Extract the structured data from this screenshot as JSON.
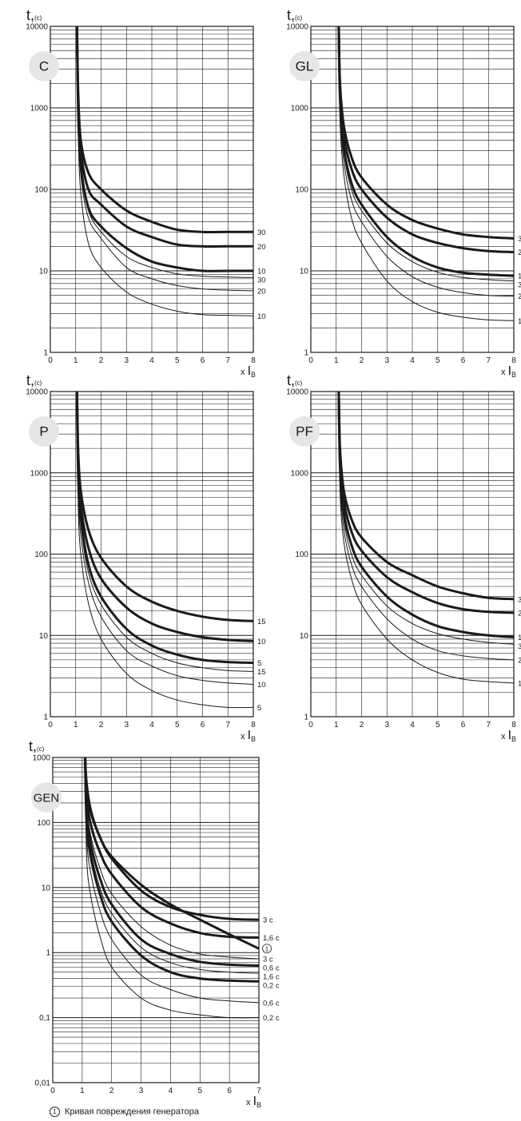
{
  "footnote": {
    "marker": "1",
    "text": "Кривая повреждения генератора"
  },
  "chart_data": [
    {
      "type": "line",
      "badge": "C",
      "ylabel": "t,(c)",
      "xlabel": "x IB",
      "ylog": true,
      "ylim": [
        1,
        10000
      ],
      "xlim": [
        0,
        8
      ],
      "yticks": [
        "1",
        "10",
        "100",
        "1000",
        "10000"
      ],
      "xticks": [
        "0",
        "1",
        "2",
        "3",
        "4",
        "5",
        "6",
        "7",
        "8"
      ],
      "series": [
        {
          "name": "30",
          "bold": true,
          "x": [
            1.05,
            1.1,
            1.2,
            1.5,
            2,
            3,
            4,
            5,
            6,
            7,
            8
          ],
          "y": [
            10000,
            1500,
            400,
            160,
            100,
            55,
            40,
            32,
            30,
            30,
            30
          ]
        },
        {
          "name": "20",
          "bold": true,
          "x": [
            1.05,
            1.1,
            1.2,
            1.5,
            2,
            3,
            4,
            5,
            6,
            7,
            8
          ],
          "y": [
            10000,
            1200,
            300,
            100,
            65,
            35,
            26,
            21,
            20,
            20,
            20
          ]
        },
        {
          "name": "10",
          "bold": true,
          "x": [
            1.05,
            1.1,
            1.2,
            1.5,
            2,
            3,
            4,
            5,
            6,
            7,
            8
          ],
          "y": [
            10000,
            900,
            200,
            60,
            35,
            19,
            13,
            11,
            10,
            10,
            10
          ]
        },
        {
          "name": "30",
          "bold": false,
          "x": [
            1.05,
            1.1,
            1.2,
            1.5,
            2,
            3,
            4,
            5,
            6,
            7,
            8
          ],
          "y": [
            10000,
            800,
            180,
            55,
            30,
            15,
            11,
            9.2,
            8.6,
            8.4,
            8.3
          ]
        },
        {
          "name": "20",
          "bold": false,
          "x": [
            1.05,
            1.1,
            1.2,
            1.5,
            2,
            3,
            4,
            5,
            6,
            7,
            8
          ],
          "y": [
            10000,
            700,
            150,
            45,
            25,
            11,
            8,
            6.6,
            6,
            5.8,
            5.7
          ]
        },
        {
          "name": "10",
          "bold": false,
          "x": [
            1.05,
            1.1,
            1.2,
            1.5,
            2,
            3,
            4,
            5,
            6,
            7,
            8
          ],
          "y": [
            10000,
            500,
            90,
            22,
            11,
            5.5,
            3.9,
            3.2,
            2.9,
            2.85,
            2.8
          ]
        }
      ]
    },
    {
      "type": "line",
      "badge": "GL",
      "ylabel": "t,(c)",
      "xlabel": "x IB",
      "ylog": true,
      "ylim": [
        1,
        10000
      ],
      "xlim": [
        0,
        8
      ],
      "yticks": [
        "1",
        "10",
        "100",
        "1000",
        "10000"
      ],
      "xticks": [
        "0",
        "1",
        "2",
        "3",
        "4",
        "5",
        "6",
        "7",
        "8"
      ],
      "series": [
        {
          "name": "3",
          "bold": true,
          "x": [
            1.1,
            1.15,
            1.3,
            1.6,
            2,
            3,
            4,
            5,
            6,
            7,
            8
          ],
          "y": [
            10000,
            2000,
            600,
            250,
            140,
            65,
            42,
            33,
            28,
            26,
            25
          ]
        },
        {
          "name": "2",
          "bold": true,
          "x": [
            1.1,
            1.15,
            1.3,
            1.6,
            2,
            3,
            4,
            5,
            6,
            7,
            8
          ],
          "y": [
            10000,
            1700,
            450,
            180,
            100,
            45,
            28,
            22,
            19,
            17.5,
            17
          ]
        },
        {
          "name": "1",
          "bold": true,
          "x": [
            1.1,
            1.15,
            1.3,
            1.6,
            2,
            3,
            4,
            5,
            6,
            7,
            8
          ],
          "y": [
            10000,
            1300,
            320,
            120,
            65,
            26,
            15,
            11,
            9.5,
            9,
            8.7
          ]
        },
        {
          "name": "3",
          "bold": false,
          "x": [
            1.1,
            1.15,
            1.3,
            1.6,
            2,
            3,
            4,
            5,
            6,
            7,
            8
          ],
          "y": [
            10000,
            1100,
            280,
            100,
            55,
            22,
            13,
            9.6,
            8.3,
            7.8,
            7.5
          ]
        },
        {
          "name": "2",
          "bold": false,
          "x": [
            1.1,
            1.15,
            1.3,
            1.6,
            2,
            3,
            4,
            5,
            6,
            7,
            8
          ],
          "y": [
            10000,
            900,
            220,
            75,
            40,
            15,
            8.5,
            6.3,
            5.4,
            5,
            4.9
          ]
        },
        {
          "name": "1",
          "bold": false,
          "x": [
            1.1,
            1.15,
            1.3,
            1.6,
            2,
            3,
            4,
            5,
            6,
            7,
            8
          ],
          "y": [
            10000,
            700,
            150,
            45,
            22,
            7.5,
            4.2,
            3.1,
            2.7,
            2.5,
            2.45
          ]
        }
      ]
    },
    {
      "type": "line",
      "badge": "P",
      "ylabel": "t,(c)",
      "xlabel": "x IB",
      "ylog": true,
      "ylim": [
        1,
        10000
      ],
      "xlim": [
        0,
        8
      ],
      "yticks": [
        "1",
        "10",
        "100",
        "1000",
        "10000"
      ],
      "xticks": [
        "0",
        "1",
        "2",
        "3",
        "4",
        "5",
        "6",
        "7",
        "8"
      ],
      "series": [
        {
          "name": "15",
          "bold": true,
          "x": [
            1.05,
            1.1,
            1.2,
            1.5,
            2,
            3,
            4,
            5,
            6,
            7,
            8
          ],
          "y": [
            10000,
            1800,
            600,
            200,
            90,
            40,
            26,
            20,
            17,
            15.5,
            15
          ]
        },
        {
          "name": "10",
          "bold": true,
          "x": [
            1.05,
            1.1,
            1.2,
            1.5,
            2,
            3,
            4,
            5,
            6,
            7,
            8
          ],
          "y": [
            10000,
            1200,
            400,
            120,
            50,
            22,
            14,
            11,
            9.5,
            8.8,
            8.5
          ]
        },
        {
          "name": "5",
          "bold": true,
          "x": [
            1.05,
            1.1,
            1.2,
            1.5,
            2,
            3,
            4,
            5,
            6,
            7,
            8
          ],
          "y": [
            10000,
            900,
            280,
            75,
            30,
            12,
            7.5,
            5.8,
            5,
            4.7,
            4.6
          ]
        },
        {
          "name": "15",
          "bold": false,
          "x": [
            1.05,
            1.1,
            1.2,
            1.5,
            2,
            3,
            4,
            5,
            6,
            7,
            8
          ],
          "y": [
            10000,
            800,
            230,
            60,
            24,
            9.5,
            6,
            4.6,
            4,
            3.7,
            3.6
          ]
        },
        {
          "name": "10",
          "bold": false,
          "x": [
            1.05,
            1.1,
            1.2,
            1.5,
            2,
            3,
            4,
            5,
            6,
            7,
            8
          ],
          "y": [
            10000,
            600,
            170,
            45,
            17,
            6.5,
            4.2,
            3.2,
            2.8,
            2.6,
            2.5
          ]
        },
        {
          "name": "5",
          "bold": false,
          "x": [
            1.05,
            1.1,
            1.2,
            1.5,
            2,
            3,
            4,
            5,
            6,
            7,
            8
          ],
          "y": [
            10000,
            400,
            100,
            25,
            9,
            3.4,
            2.1,
            1.6,
            1.4,
            1.3,
            1.3
          ]
        }
      ]
    },
    {
      "type": "line",
      "badge": "PF",
      "ylabel": "t,(c)",
      "xlabel": "x IB",
      "ylog": true,
      "ylim": [
        1,
        10000
      ],
      "xlim": [
        0,
        8
      ],
      "yticks": [
        "1",
        "10",
        "100",
        "1000",
        "10000"
      ],
      "xticks": [
        "0",
        "1",
        "2",
        "3",
        "4",
        "5",
        "6",
        "7",
        "8"
      ],
      "series": [
        {
          "name": "3",
          "bold": true,
          "x": [
            1.1,
            1.15,
            1.3,
            1.6,
            2,
            3,
            4,
            5,
            6,
            7,
            8
          ],
          "y": [
            10000,
            2000,
            600,
            270,
            160,
            80,
            55,
            40,
            33,
            29,
            28
          ]
        },
        {
          "name": "2",
          "bold": true,
          "x": [
            1.1,
            1.15,
            1.3,
            1.6,
            2,
            3,
            4,
            5,
            6,
            7,
            8
          ],
          "y": [
            10000,
            1600,
            450,
            190,
            110,
            52,
            34,
            25,
            21,
            19.5,
            19
          ]
        },
        {
          "name": "1",
          "bold": true,
          "x": [
            1.1,
            1.15,
            1.3,
            1.6,
            2,
            3,
            4,
            5,
            6,
            7,
            8
          ],
          "y": [
            10000,
            1200,
            320,
            130,
            70,
            30,
            18,
            13,
            11,
            10,
            9.5
          ]
        },
        {
          "name": "3",
          "bold": false,
          "x": [
            1.1,
            1.15,
            1.3,
            1.6,
            2,
            3,
            4,
            5,
            6,
            7,
            8
          ],
          "y": [
            10000,
            1000,
            260,
            100,
            55,
            23,
            14,
            10.5,
            9,
            8.2,
            7.8
          ]
        },
        {
          "name": "2",
          "bold": false,
          "x": [
            1.1,
            1.15,
            1.3,
            1.6,
            2,
            3,
            4,
            5,
            6,
            7,
            8
          ],
          "y": [
            10000,
            800,
            200,
            75,
            40,
            16,
            9,
            6.5,
            5.6,
            5.2,
            5
          ]
        },
        {
          "name": "1",
          "bold": false,
          "x": [
            1.1,
            1.15,
            1.3,
            1.6,
            2,
            3,
            4,
            5,
            6,
            7,
            8
          ],
          "y": [
            10000,
            600,
            140,
            50,
            24,
            9,
            5,
            3.5,
            2.9,
            2.7,
            2.6
          ]
        }
      ]
    },
    {
      "type": "line",
      "badge": "GEN",
      "ylabel": "t,(c)",
      "xlabel": "x IB",
      "ylog": true,
      "ylim": [
        0.01,
        1000
      ],
      "xlim": [
        0,
        7
      ],
      "yticks": [
        "0,01",
        "0,1",
        "1",
        "10",
        "100",
        "1000"
      ],
      "xticks": [
        "0",
        "1",
        "2",
        "3",
        "4",
        "5",
        "6",
        "7"
      ],
      "series": [
        {
          "name": "3 c",
          "bold": true,
          "x": [
            1.1,
            1.15,
            1.3,
            1.6,
            2,
            3,
            4,
            5,
            6,
            7
          ],
          "y": [
            1000,
            350,
            140,
            60,
            28,
            9,
            5,
            3.8,
            3.3,
            3.2
          ]
        },
        {
          "name": "1,6 c",
          "bold": true,
          "x": [
            1.1,
            1.15,
            1.3,
            1.6,
            2,
            3,
            4,
            5,
            6,
            7
          ],
          "y": [
            1000,
            250,
            90,
            35,
            16,
            5,
            2.8,
            2,
            1.75,
            1.7
          ]
        },
        {
          "name": "1",
          "bold": true,
          "x": [
            1.1,
            1.15,
            1.3,
            1.6,
            2,
            3,
            4,
            5,
            6,
            7
          ],
          "y": [
            1000,
            400,
            150,
            60,
            30,
            11,
            5.5,
            3.2,
            1.9,
            1.15
          ]
        },
        {
          "name": "3 c",
          "bold": false,
          "x": [
            1.1,
            1.15,
            1.3,
            1.6,
            2,
            3,
            4,
            5,
            6,
            7
          ],
          "y": [
            1000,
            180,
            60,
            20,
            8,
            2.5,
            1.3,
            0.95,
            0.85,
            0.8
          ]
        },
        {
          "name": "0,6 c",
          "bold": true,
          "x": [
            1.1,
            1.15,
            1.3,
            1.6,
            2,
            3,
            4,
            5,
            6,
            7
          ],
          "y": [
            1000,
            150,
            45,
            14,
            5.5,
            1.6,
            0.95,
            0.72,
            0.65,
            0.63
          ]
        },
        {
          "name": "1,6 c",
          "bold": false,
          "x": [
            1.1,
            1.15,
            1.3,
            1.6,
            2,
            3,
            4,
            5,
            6,
            7
          ],
          "y": [
            1000,
            120,
            35,
            10,
            4,
            1.2,
            0.7,
            0.55,
            0.5,
            0.48
          ]
        },
        {
          "name": "0,2 c",
          "bold": true,
          "x": [
            1.1,
            1.15,
            1.3,
            1.6,
            2,
            3,
            4,
            5,
            6,
            7
          ],
          "y": [
            1000,
            100,
            28,
            8,
            3,
            0.9,
            0.5,
            0.4,
            0.37,
            0.36
          ]
        },
        {
          "name": "0,6 c",
          "bold": false,
          "x": [
            1.1,
            1.15,
            1.3,
            1.6,
            2,
            3,
            4,
            5,
            6,
            7
          ],
          "y": [
            1000,
            60,
            16,
            4.5,
            1.6,
            0.45,
            0.27,
            0.2,
            0.18,
            0.17
          ]
        },
        {
          "name": "0,2 c",
          "bold": false,
          "x": [
            1.1,
            1.15,
            1.3,
            1.6,
            2,
            3,
            4,
            5,
            6,
            7
          ],
          "y": [
            1000,
            30,
            7,
            1.8,
            0.6,
            0.2,
            0.13,
            0.11,
            0.1,
            0.1
          ]
        }
      ]
    }
  ]
}
